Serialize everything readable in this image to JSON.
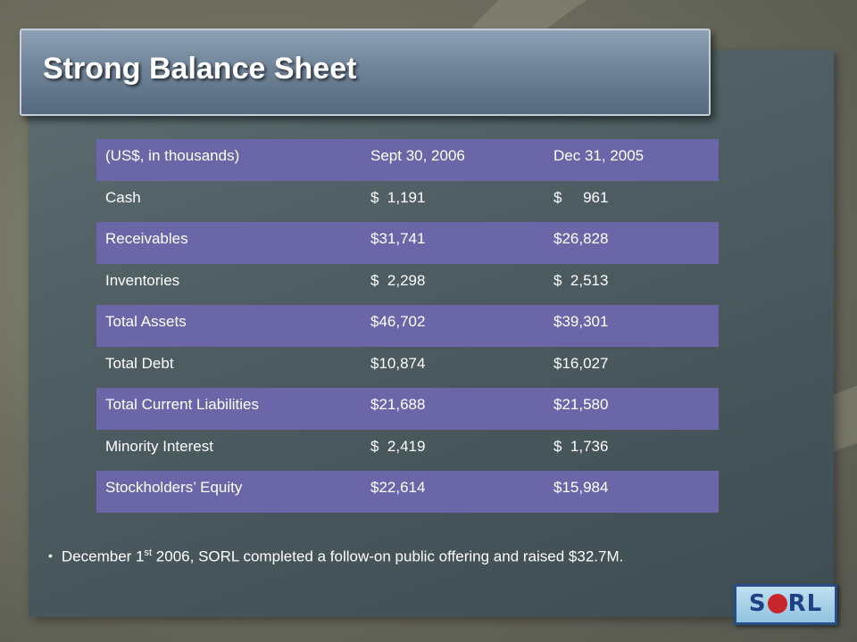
{
  "title": "Strong Balance Sheet",
  "table": {
    "header": [
      "(US$, in thousands)",
      "Sept 30, 2006",
      "Dec 31, 2005"
    ],
    "rows": [
      [
        "Cash",
        "$  1,191",
        "$     961"
      ],
      [
        "Receivables",
        "$31,741",
        "$26,828"
      ],
      [
        "Inventories",
        "$  2,298",
        "$  2,513"
      ],
      [
        "Total Assets",
        "$46,702",
        "$39,301"
      ],
      [
        "Total Debt",
        "$10,874",
        "$16,027"
      ],
      [
        "Total Current Liabilities",
        "$21,688",
        "$21,580"
      ],
      [
        "Minority Interest",
        "$  2,419",
        "$  1,736"
      ],
      [
        "Stockholders’ Equity",
        "$22,614",
        "$15,984"
      ]
    ]
  },
  "note": {
    "pre": "December 1",
    "sup": "st",
    "post": " 2006, SORL completed a follow-on public offering and raised $32.7M."
  },
  "logo": {
    "left": "S",
    "right": "RL"
  },
  "colors": {
    "row_band": "#6a66a8",
    "panel": "#4d5d62",
    "title_bar": "#6f8499"
  }
}
